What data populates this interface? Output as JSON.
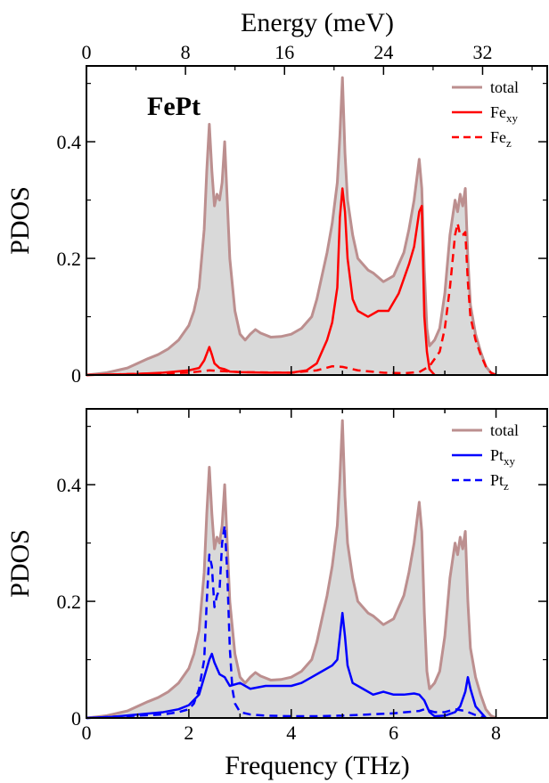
{
  "chart_data": [
    {
      "type": "area",
      "panel_label": "FePt",
      "top_axis": {
        "label": "Energy (meV)",
        "ticks": [
          "0",
          "8",
          "16",
          "24",
          "32"
        ],
        "tick_values": [
          0,
          8,
          16,
          24,
          32
        ]
      },
      "xlim": [
        0,
        9
      ],
      "ylim": [
        0,
        0.53
      ],
      "ylabel": "PDOS",
      "yticks": [
        "0",
        "0.2",
        "0.4"
      ],
      "ytick_values": [
        0,
        0.2,
        0.4
      ],
      "legend_position": "top-right",
      "series": [
        {
          "name": "total",
          "legend_main": "total",
          "legend_sub": "",
          "color": "#bc8f8f",
          "fill": "#d9d9d9",
          "style": "solid",
          "x": [
            0,
            0.2,
            0.4,
            0.6,
            0.8,
            1.0,
            1.2,
            1.4,
            1.6,
            1.8,
            2.0,
            2.1,
            2.2,
            2.3,
            2.35,
            2.4,
            2.45,
            2.5,
            2.55,
            2.6,
            2.65,
            2.7,
            2.75,
            2.8,
            2.9,
            3.0,
            3.1,
            3.2,
            3.3,
            3.4,
            3.6,
            3.8,
            4.0,
            4.2,
            4.4,
            4.5,
            4.6,
            4.7,
            4.8,
            4.9,
            4.95,
            5.0,
            5.05,
            5.1,
            5.2,
            5.3,
            5.4,
            5.5,
            5.6,
            5.8,
            6.0,
            6.2,
            6.3,
            6.4,
            6.5,
            6.55,
            6.6,
            6.65,
            6.7,
            6.8,
            6.9,
            7.0,
            7.1,
            7.2,
            7.25,
            7.3,
            7.35,
            7.4,
            7.45,
            7.5,
            7.6,
            7.7,
            7.8,
            7.9,
            8.0
          ],
          "y": [
            0,
            0.002,
            0.004,
            0.008,
            0.012,
            0.02,
            0.028,
            0.035,
            0.045,
            0.06,
            0.085,
            0.11,
            0.15,
            0.25,
            0.35,
            0.43,
            0.35,
            0.29,
            0.31,
            0.3,
            0.33,
            0.4,
            0.3,
            0.2,
            0.11,
            0.07,
            0.06,
            0.07,
            0.078,
            0.072,
            0.065,
            0.066,
            0.07,
            0.08,
            0.1,
            0.13,
            0.17,
            0.21,
            0.26,
            0.33,
            0.41,
            0.51,
            0.38,
            0.3,
            0.24,
            0.2,
            0.19,
            0.18,
            0.175,
            0.16,
            0.17,
            0.21,
            0.25,
            0.3,
            0.37,
            0.32,
            0.18,
            0.08,
            0.05,
            0.06,
            0.08,
            0.14,
            0.24,
            0.3,
            0.28,
            0.31,
            0.29,
            0.32,
            0.2,
            0.12,
            0.07,
            0.04,
            0.015,
            0.004,
            0
          ]
        },
        {
          "name": "Fe_xy",
          "legend_main": "Fe",
          "legend_sub": "xy",
          "color": "#ff0000",
          "style": "solid",
          "x": [
            0,
            0.5,
            1.0,
            1.5,
            2.0,
            2.2,
            2.3,
            2.4,
            2.45,
            2.5,
            2.6,
            2.7,
            2.8,
            3.0,
            3.5,
            4.0,
            4.3,
            4.5,
            4.6,
            4.7,
            4.8,
            4.9,
            4.95,
            5.0,
            5.05,
            5.1,
            5.2,
            5.3,
            5.5,
            5.7,
            5.9,
            6.1,
            6.3,
            6.4,
            6.5,
            6.55,
            6.6,
            6.65,
            6.7,
            6.8
          ],
          "y": [
            0,
            0.001,
            0.002,
            0.004,
            0.008,
            0.012,
            0.025,
            0.048,
            0.035,
            0.02,
            0.012,
            0.01,
            0.006,
            0.005,
            0.004,
            0.004,
            0.008,
            0.02,
            0.04,
            0.06,
            0.09,
            0.15,
            0.27,
            0.32,
            0.28,
            0.2,
            0.13,
            0.11,
            0.1,
            0.11,
            0.11,
            0.14,
            0.19,
            0.22,
            0.28,
            0.29,
            0.1,
            0.04,
            0.01,
            0
          ]
        },
        {
          "name": "Fe_z",
          "legend_main": "Fe",
          "legend_sub": "z",
          "color": "#ff0000",
          "style": "dashed",
          "x": [
            0,
            1.0,
            2.0,
            2.4,
            3.0,
            4.0,
            4.5,
            4.8,
            5.0,
            5.3,
            5.8,
            6.2,
            6.5,
            6.7,
            6.9,
            7.0,
            7.1,
            7.2,
            7.25,
            7.3,
            7.35,
            7.4,
            7.45,
            7.5,
            7.6,
            7.7,
            7.8,
            7.9,
            8.0
          ],
          "y": [
            0,
            0.002,
            0.004,
            0.008,
            0.005,
            0.004,
            0.008,
            0.015,
            0.014,
            0.008,
            0.004,
            0.003,
            0.005,
            0.015,
            0.04,
            0.08,
            0.15,
            0.24,
            0.26,
            0.24,
            0.24,
            0.245,
            0.16,
            0.1,
            0.06,
            0.035,
            0.015,
            0.004,
            0
          ]
        }
      ]
    },
    {
      "type": "area",
      "xlabel": "Frequency (THz)",
      "xlim": [
        0,
        9
      ],
      "xticks": [
        "0",
        "2",
        "4",
        "6",
        "8"
      ],
      "xtick_values": [
        0,
        2,
        4,
        6,
        8
      ],
      "ylim": [
        0,
        0.53
      ],
      "ylabel": "PDOS",
      "yticks": [
        "0",
        "0.2",
        "0.4"
      ],
      "ytick_values": [
        0,
        0.2,
        0.4
      ],
      "legend_position": "top-right",
      "series": [
        {
          "name": "total",
          "legend_main": "total",
          "legend_sub": "",
          "color": "#bc8f8f",
          "fill": "#d9d9d9",
          "style": "solid",
          "x": [
            0,
            0.2,
            0.4,
            0.6,
            0.8,
            1.0,
            1.2,
            1.4,
            1.6,
            1.8,
            2.0,
            2.1,
            2.2,
            2.3,
            2.35,
            2.4,
            2.45,
            2.5,
            2.55,
            2.6,
            2.65,
            2.7,
            2.75,
            2.8,
            2.9,
            3.0,
            3.1,
            3.2,
            3.3,
            3.4,
            3.6,
            3.8,
            4.0,
            4.2,
            4.4,
            4.5,
            4.6,
            4.7,
            4.8,
            4.9,
            4.95,
            5.0,
            5.05,
            5.1,
            5.2,
            5.3,
            5.4,
            5.5,
            5.6,
            5.8,
            6.0,
            6.2,
            6.3,
            6.4,
            6.5,
            6.55,
            6.6,
            6.65,
            6.7,
            6.8,
            6.9,
            7.0,
            7.1,
            7.2,
            7.25,
            7.3,
            7.35,
            7.4,
            7.45,
            7.5,
            7.6,
            7.7,
            7.8,
            7.9,
            8.0
          ],
          "y": [
            0,
            0.002,
            0.004,
            0.008,
            0.012,
            0.02,
            0.028,
            0.035,
            0.045,
            0.06,
            0.085,
            0.11,
            0.15,
            0.25,
            0.35,
            0.43,
            0.35,
            0.29,
            0.31,
            0.3,
            0.33,
            0.4,
            0.3,
            0.2,
            0.11,
            0.07,
            0.06,
            0.07,
            0.078,
            0.072,
            0.065,
            0.066,
            0.07,
            0.08,
            0.1,
            0.13,
            0.17,
            0.21,
            0.26,
            0.33,
            0.41,
            0.51,
            0.38,
            0.3,
            0.24,
            0.2,
            0.19,
            0.18,
            0.175,
            0.16,
            0.17,
            0.21,
            0.25,
            0.3,
            0.37,
            0.32,
            0.18,
            0.08,
            0.05,
            0.06,
            0.08,
            0.14,
            0.24,
            0.3,
            0.28,
            0.31,
            0.29,
            0.32,
            0.2,
            0.12,
            0.07,
            0.04,
            0.015,
            0.004,
            0
          ]
        },
        {
          "name": "Pt_xy",
          "legend_main": "Pt",
          "legend_sub": "xy",
          "color": "#0000ff",
          "style": "solid",
          "x": [
            0,
            0.5,
            1.0,
            1.5,
            1.8,
            2.0,
            2.2,
            2.3,
            2.4,
            2.45,
            2.5,
            2.6,
            2.7,
            2.8,
            3.0,
            3.2,
            3.5,
            3.8,
            4.0,
            4.2,
            4.4,
            4.6,
            4.8,
            4.9,
            4.95,
            5.0,
            5.05,
            5.1,
            5.2,
            5.4,
            5.6,
            5.8,
            6.0,
            6.2,
            6.4,
            6.5,
            6.6,
            6.7,
            6.8,
            7.0,
            7.2,
            7.3,
            7.4,
            7.45,
            7.5,
            7.6,
            7.8
          ],
          "y": [
            0,
            0.002,
            0.006,
            0.01,
            0.015,
            0.022,
            0.04,
            0.07,
            0.1,
            0.11,
            0.095,
            0.075,
            0.07,
            0.055,
            0.06,
            0.05,
            0.055,
            0.055,
            0.055,
            0.06,
            0.07,
            0.08,
            0.09,
            0.1,
            0.14,
            0.18,
            0.14,
            0.09,
            0.06,
            0.05,
            0.04,
            0.045,
            0.04,
            0.04,
            0.042,
            0.04,
            0.03,
            0.01,
            0.003,
            0.004,
            0.01,
            0.02,
            0.045,
            0.07,
            0.05,
            0.02,
            0
          ]
        },
        {
          "name": "Pt_z",
          "legend_main": "Pt",
          "legend_sub": "z",
          "color": "#0000ff",
          "style": "dashed",
          "x": [
            0,
            0.5,
            1.0,
            1.5,
            1.8,
            2.0,
            2.1,
            2.2,
            2.3,
            2.35,
            2.4,
            2.45,
            2.5,
            2.55,
            2.6,
            2.65,
            2.7,
            2.75,
            2.8,
            2.85,
            2.9,
            3.0,
            3.2,
            3.5,
            4.0,
            4.5,
            5.0,
            5.5,
            6.0,
            6.5,
            6.6,
            6.8,
            7.0,
            7.2,
            7.4,
            7.6,
            7.8
          ],
          "y": [
            0,
            0.002,
            0.004,
            0.006,
            0.01,
            0.015,
            0.025,
            0.05,
            0.1,
            0.2,
            0.28,
            0.26,
            0.19,
            0.21,
            0.22,
            0.3,
            0.33,
            0.25,
            0.12,
            0.05,
            0.025,
            0.01,
            0.006,
            0.004,
            0.003,
            0.003,
            0.004,
            0.006,
            0.008,
            0.012,
            0.015,
            0.01,
            0.01,
            0.015,
            0.012,
            0.005,
            0
          ]
        }
      ]
    }
  ]
}
